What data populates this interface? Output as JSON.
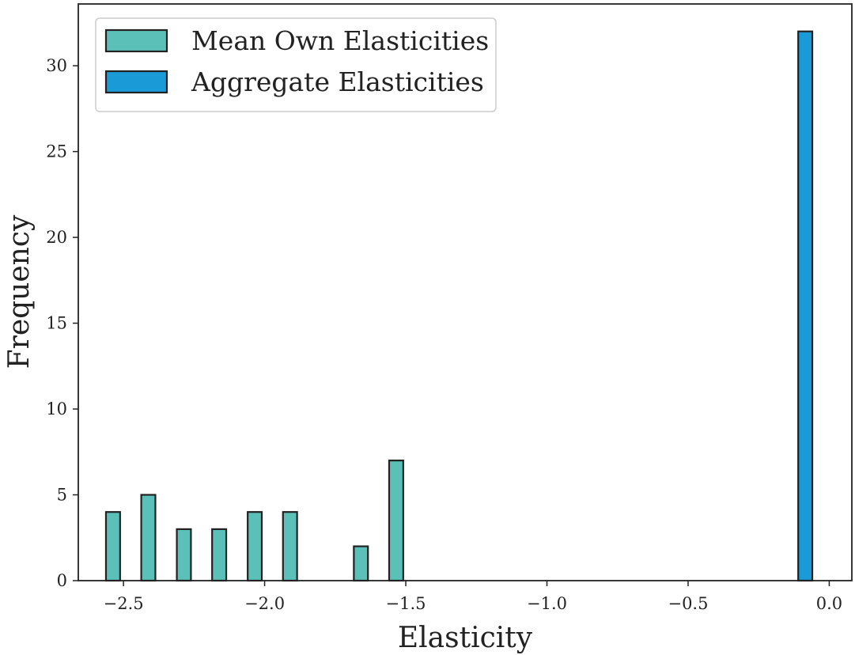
{
  "chart_data": {
    "type": "bar",
    "xlabel": "Elasticity",
    "ylabel": "Frequency",
    "xlim": [
      -2.66,
      0.08
    ],
    "ylim": [
      0,
      33.6
    ],
    "x_ticks": [
      -2.5,
      -2.0,
      -1.5,
      -1.0,
      -0.5,
      0.0
    ],
    "x_tick_labels": [
      "−2.5",
      "−2.0",
      "−1.5",
      "−1.0",
      "−0.5",
      "0.0"
    ],
    "y_ticks": [
      0,
      5,
      10,
      15,
      20,
      25,
      30
    ],
    "y_tick_labels": [
      "0",
      "5",
      "10",
      "15",
      "20",
      "25",
      "30"
    ],
    "bar_width": 0.05,
    "grid": false,
    "legend_position": "top-left",
    "series": [
      {
        "name": "Mean Own Elasticities",
        "color": "#5bc0b8",
        "x": [
          -2.537,
          -2.412,
          -2.286,
          -2.161,
          -2.035,
          -1.91,
          -1.785,
          -1.659,
          -1.534
        ],
        "values": [
          4,
          5,
          3,
          3,
          4,
          4,
          0,
          2,
          7
        ]
      },
      {
        "name": "Aggregate Elasticities",
        "color": "#1a9ad6",
        "x": [
          -0.085
        ],
        "values": [
          32
        ]
      }
    ]
  }
}
